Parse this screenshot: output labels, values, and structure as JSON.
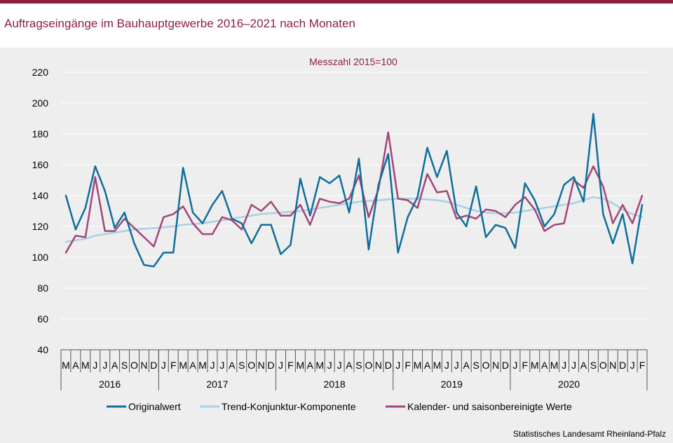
{
  "title": "Auftragseingänge im Bauhauptgewerbe 2016–2021 nach Monaten",
  "source": "Statistisches Landesamt Rheinland-Pfalz",
  "colors": {
    "accent": "#8c1f3e",
    "original": "#0f6e9a",
    "trend": "#a9d0e4",
    "adjusted": "#a2467a"
  },
  "chart_data": {
    "type": "line",
    "subtitle": "Messzahl 2015=100",
    "ylim": [
      40,
      220
    ],
    "yticks": [
      40,
      60,
      80,
      100,
      120,
      140,
      160,
      180,
      200,
      220
    ],
    "grid": true,
    "legend_position": "bottom",
    "month_labels": [
      "M",
      "A",
      "M",
      "J",
      "J",
      "A",
      "S",
      "O",
      "N",
      "D",
      "J",
      "F",
      "M",
      "A",
      "M",
      "J",
      "J",
      "A",
      "S",
      "O",
      "N",
      "D",
      "J",
      "F",
      "M",
      "A",
      "M",
      "J",
      "J",
      "A",
      "S",
      "O",
      "N",
      "D",
      "J",
      "F",
      "M",
      "A",
      "M",
      "J",
      "J",
      "A",
      "S",
      "O",
      "N",
      "D",
      "J",
      "F",
      "M",
      "A",
      "M",
      "J",
      "J",
      "A",
      "S",
      "O",
      "N",
      "D",
      "J",
      "F"
    ],
    "year_groups": [
      {
        "label": "2016",
        "start": 0,
        "count": 10
      },
      {
        "label": "2017",
        "start": 10,
        "count": 12
      },
      {
        "label": "2018",
        "start": 22,
        "count": 12
      },
      {
        "label": "2019",
        "start": 34,
        "count": 12
      },
      {
        "label": "2020",
        "start": 46,
        "count": 12
      }
    ],
    "series": [
      {
        "name": "Originalwert",
        "color": "#0f6e9a",
        "values": [
          140,
          118,
          132,
          159,
          143,
          119,
          129,
          109,
          95,
          94,
          103,
          103,
          158,
          129,
          122,
          134,
          143,
          125,
          122,
          109,
          121,
          121,
          102,
          108,
          151,
          127,
          152,
          148,
          153,
          129,
          164,
          105,
          147,
          167,
          103,
          126,
          139,
          171,
          152,
          169,
          129,
          120,
          146,
          113,
          121,
          119,
          106,
          148,
          137,
          120,
          128,
          147,
          152,
          136,
          193,
          128,
          109,
          128,
          96,
          134
        ]
      },
      {
        "name": "Trend-Konjunktur-Komponente",
        "color": "#a9d0e4",
        "values": [
          110,
          111,
          112,
          114,
          115,
          116,
          117,
          118,
          118.5,
          119,
          119.5,
          120,
          121,
          121.5,
          122,
          123,
          124,
          125,
          126,
          127,
          128,
          128.5,
          129,
          129.5,
          130,
          131,
          132,
          133,
          134,
          135,
          136,
          136.5,
          137,
          137.5,
          138,
          138,
          138,
          137.5,
          137,
          136,
          134,
          132,
          130,
          129,
          128.5,
          128.5,
          129,
          130,
          131,
          132,
          133,
          134,
          135,
          137,
          139,
          138,
          135,
          131,
          128,
          126
        ]
      },
      {
        "name": "Kalender- und saisonbereinigte Werte",
        "color": "#a2467a",
        "values": [
          103,
          114,
          113,
          152,
          117,
          117,
          125,
          119,
          113,
          107,
          126,
          128,
          133,
          122,
          115,
          115,
          126,
          124,
          118,
          134,
          130,
          136,
          127,
          127,
          134,
          121,
          138,
          136,
          135,
          138,
          153,
          126,
          144,
          181,
          138,
          137,
          132,
          154,
          142,
          143,
          125,
          127,
          125,
          131,
          130,
          126,
          134,
          139,
          131,
          117,
          121,
          122,
          150,
          145,
          159,
          146,
          122,
          134,
          122,
          140
        ]
      }
    ]
  }
}
